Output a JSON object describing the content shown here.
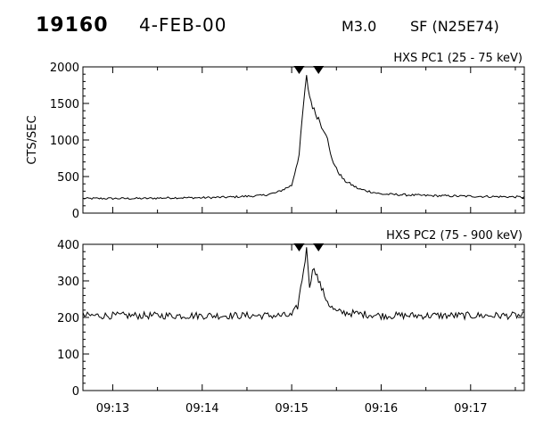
{
  "header": {
    "event_number": "19160",
    "date": "4-FEB-00",
    "goes_class": "M3.0",
    "flare_location": "SF (N25E74)"
  },
  "chart_data": [
    {
      "type": "line",
      "title": "HXS PC1 (25 - 75 keV)",
      "ylabel": "CTS/SEC",
      "ylim": [
        0,
        2000
      ],
      "yticks": [
        0,
        500,
        1000,
        1500,
        2000
      ],
      "xlabel": "",
      "xlim": [
        "09:12:40",
        "09:17:36"
      ],
      "xtick_labels": [
        "09:13",
        "09:14",
        "09:15",
        "09:16",
        "09:17"
      ],
      "interval_markers": [
        "09:15:05",
        "09:15:18"
      ],
      "series": [
        {
          "x": [
            "09:12:40",
            "09:13:00",
            "09:13:20",
            "09:13:40",
            "09:14:00",
            "09:14:20",
            "09:14:40",
            "09:14:50",
            "09:15:00",
            "09:15:05",
            "09:15:08",
            "09:15:10",
            "09:15:12",
            "09:15:15",
            "09:15:18",
            "09:15:20",
            "09:15:23",
            "09:15:26",
            "09:15:30",
            "09:15:35",
            "09:15:45",
            "09:16:00",
            "09:16:30",
            "09:17:00",
            "09:17:36"
          ],
          "values": [
            200,
            200,
            200,
            210,
            210,
            220,
            240,
            280,
            380,
            800,
            1500,
            1850,
            1600,
            1400,
            1300,
            1200,
            1100,
            800,
            600,
            450,
            330,
            260,
            240,
            230,
            220
          ]
        }
      ]
    },
    {
      "type": "line",
      "title": "HXS PC2 (75 - 900 keV)",
      "ylabel": "",
      "ylim": [
        0,
        400
      ],
      "yticks": [
        0,
        100,
        200,
        300,
        400
      ],
      "xlabel": "",
      "xlim": [
        "09:12:40",
        "09:17:36"
      ],
      "xtick_labels": [
        "09:13",
        "09:14",
        "09:15",
        "09:16",
        "09:17"
      ],
      "interval_markers": [
        "09:15:05",
        "09:15:18"
      ],
      "series": [
        {
          "x": [
            "09:12:40",
            "09:14:00",
            "09:15:00",
            "09:15:04",
            "09:15:08",
            "09:15:10",
            "09:15:12",
            "09:15:15",
            "09:15:18",
            "09:15:22",
            "09:15:26",
            "09:15:30",
            "09:16:00",
            "09:17:00",
            "09:17:36"
          ],
          "values": [
            205,
            205,
            205,
            230,
            330,
            390,
            290,
            340,
            300,
            260,
            230,
            215,
            205,
            205,
            205
          ]
        }
      ]
    }
  ]
}
